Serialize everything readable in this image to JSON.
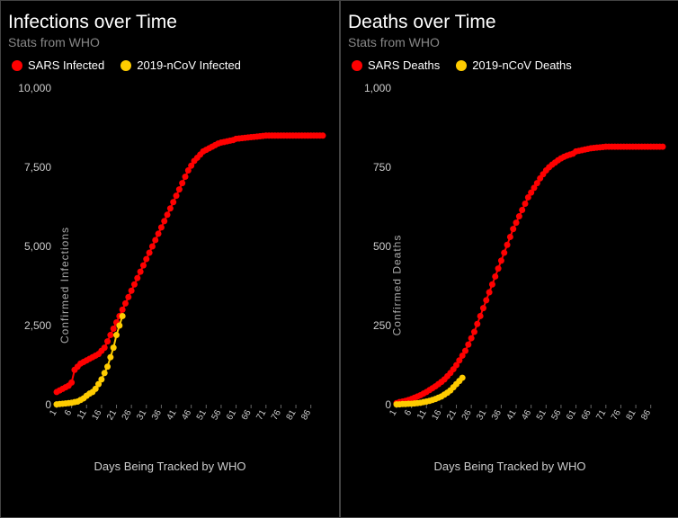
{
  "background_color": "#000000",
  "border_color": "#444444",
  "grid_color": "#333333",
  "text_color": "#ffffff",
  "muted_text": "#888888",
  "axis_text": "#cccccc",
  "panels": [
    {
      "title": "Infections over Time",
      "subtitle": "Stats from WHO",
      "ylabel": "Confirmed Infections",
      "xlabel": "Days Being Tracked by WHO",
      "ylim": [
        0,
        10000
      ],
      "ytick_step": 2500,
      "ytick_labels": [
        "0",
        "2,500",
        "5,000",
        "7,500",
        "10,000"
      ],
      "xlim": [
        1,
        90
      ],
      "xticks": [
        1,
        6,
        11,
        16,
        21,
        26,
        31,
        36,
        41,
        46,
        51,
        56,
        61,
        66,
        71,
        76,
        81,
        86
      ],
      "legend": [
        {
          "label": "SARS Infected",
          "color": "#ff0000"
        },
        {
          "label": "2019-nCoV Infected",
          "color": "#ffcc00"
        }
      ],
      "series": [
        {
          "name": "sars-infected",
          "color": "#ff0000",
          "marker_size": 3.5,
          "line_width": 2,
          "data": [
            [
              1,
              400
            ],
            [
              2,
              450
            ],
            [
              3,
              500
            ],
            [
              4,
              550
            ],
            [
              5,
              600
            ],
            [
              6,
              700
            ],
            [
              7,
              1100
            ],
            [
              8,
              1200
            ],
            [
              9,
              1300
            ],
            [
              10,
              1350
            ],
            [
              11,
              1400
            ],
            [
              12,
              1450
            ],
            [
              13,
              1500
            ],
            [
              14,
              1550
            ],
            [
              15,
              1600
            ],
            [
              16,
              1700
            ],
            [
              17,
              1800
            ],
            [
              18,
              2000
            ],
            [
              19,
              2200
            ],
            [
              20,
              2400
            ],
            [
              21,
              2600
            ],
            [
              22,
              2800
            ],
            [
              23,
              3000
            ],
            [
              24,
              3200
            ],
            [
              25,
              3400
            ],
            [
              26,
              3600
            ],
            [
              27,
              3800
            ],
            [
              28,
              4000
            ],
            [
              29,
              4200
            ],
            [
              30,
              4400
            ],
            [
              31,
              4600
            ],
            [
              32,
              4800
            ],
            [
              33,
              5000
            ],
            [
              34,
              5200
            ],
            [
              35,
              5400
            ],
            [
              36,
              5600
            ],
            [
              37,
              5800
            ],
            [
              38,
              6000
            ],
            [
              39,
              6200
            ],
            [
              40,
              6400
            ],
            [
              41,
              6600
            ],
            [
              42,
              6800
            ],
            [
              43,
              7000
            ],
            [
              44,
              7200
            ],
            [
              45,
              7400
            ],
            [
              46,
              7550
            ],
            [
              47,
              7700
            ],
            [
              48,
              7800
            ],
            [
              49,
              7900
            ],
            [
              50,
              8000
            ],
            [
              51,
              8050
            ],
            [
              52,
              8100
            ],
            [
              53,
              8150
            ],
            [
              54,
              8200
            ],
            [
              55,
              8250
            ],
            [
              56,
              8280
            ],
            [
              57,
              8300
            ],
            [
              58,
              8320
            ],
            [
              59,
              8340
            ],
            [
              60,
              8360
            ],
            [
              61,
              8400
            ],
            [
              62,
              8410
            ],
            [
              63,
              8420
            ],
            [
              64,
              8430
            ],
            [
              65,
              8440
            ],
            [
              66,
              8450
            ],
            [
              67,
              8460
            ],
            [
              68,
              8470
            ],
            [
              69,
              8480
            ],
            [
              70,
              8490
            ],
            [
              71,
              8500
            ],
            [
              72,
              8500
            ],
            [
              73,
              8500
            ],
            [
              74,
              8500
            ],
            [
              75,
              8500
            ],
            [
              76,
              8500
            ],
            [
              77,
              8500
            ],
            [
              78,
              8500
            ],
            [
              79,
              8500
            ],
            [
              80,
              8500
            ],
            [
              81,
              8500
            ],
            [
              82,
              8500
            ],
            [
              83,
              8500
            ],
            [
              84,
              8500
            ],
            [
              85,
              8500
            ],
            [
              86,
              8500
            ],
            [
              87,
              8500
            ],
            [
              88,
              8500
            ],
            [
              89,
              8500
            ],
            [
              90,
              8500
            ]
          ]
        },
        {
          "name": "ncov-infected",
          "color": "#ffcc00",
          "marker_size": 3.5,
          "line_width": 2,
          "data": [
            [
              1,
              10
            ],
            [
              2,
              20
            ],
            [
              3,
              30
            ],
            [
              4,
              40
            ],
            [
              5,
              50
            ],
            [
              6,
              60
            ],
            [
              7,
              80
            ],
            [
              8,
              100
            ],
            [
              9,
              150
            ],
            [
              10,
              200
            ],
            [
              11,
              280
            ],
            [
              12,
              350
            ],
            [
              13,
              400
            ],
            [
              14,
              500
            ],
            [
              15,
              650
            ],
            [
              16,
              800
            ],
            [
              17,
              1000
            ],
            [
              18,
              1200
            ],
            [
              19,
              1500
            ],
            [
              20,
              1800
            ],
            [
              21,
              2200
            ],
            [
              22,
              2500
            ],
            [
              23,
              2800
            ]
          ]
        }
      ]
    },
    {
      "title": "Deaths over Time",
      "subtitle": "Stats from WHO",
      "ylabel": "Confirmed  Deaths",
      "xlabel": "Days Being Tracked by WHO",
      "ylim": [
        0,
        1000
      ],
      "ytick_step": 250,
      "ytick_labels": [
        "0",
        "250",
        "500",
        "750",
        "1,000"
      ],
      "xlim": [
        1,
        90
      ],
      "xticks": [
        1,
        6,
        11,
        16,
        21,
        26,
        31,
        36,
        41,
        46,
        51,
        56,
        61,
        66,
        71,
        76,
        81,
        86
      ],
      "legend": [
        {
          "label": "SARS Deaths",
          "color": "#ff0000"
        },
        {
          "label": "2019-nCoV Deaths",
          "color": "#ffcc00"
        }
      ],
      "series": [
        {
          "name": "sars-deaths",
          "color": "#ff0000",
          "marker_size": 3.5,
          "line_width": 2,
          "data": [
            [
              1,
              5
            ],
            [
              2,
              8
            ],
            [
              3,
              10
            ],
            [
              4,
              12
            ],
            [
              5,
              15
            ],
            [
              6,
              18
            ],
            [
              7,
              22
            ],
            [
              8,
              26
            ],
            [
              9,
              30
            ],
            [
              10,
              35
            ],
            [
              11,
              40
            ],
            [
              12,
              46
            ],
            [
              13,
              52
            ],
            [
              14,
              58
            ],
            [
              15,
              65
            ],
            [
              16,
              72
            ],
            [
              17,
              80
            ],
            [
              18,
              90
            ],
            [
              19,
              100
            ],
            [
              20,
              112
            ],
            [
              21,
              125
            ],
            [
              22,
              140
            ],
            [
              23,
              155
            ],
            [
              24,
              170
            ],
            [
              25,
              190
            ],
            [
              26,
              210
            ],
            [
              27,
              230
            ],
            [
              28,
              255
            ],
            [
              29,
              280
            ],
            [
              30,
              305
            ],
            [
              31,
              330
            ],
            [
              32,
              355
            ],
            [
              33,
              380
            ],
            [
              34,
              405
            ],
            [
              35,
              430
            ],
            [
              36,
              455
            ],
            [
              37,
              480
            ],
            [
              38,
              505
            ],
            [
              39,
              530
            ],
            [
              40,
              555
            ],
            [
              41,
              575
            ],
            [
              42,
              595
            ],
            [
              43,
              615
            ],
            [
              44,
              635
            ],
            [
              45,
              655
            ],
            [
              46,
              670
            ],
            [
              47,
              685
            ],
            [
              48,
              700
            ],
            [
              49,
              715
            ],
            [
              50,
              728
            ],
            [
              51,
              740
            ],
            [
              52,
              750
            ],
            [
              53,
              758
            ],
            [
              54,
              765
            ],
            [
              55,
              772
            ],
            [
              56,
              778
            ],
            [
              57,
              783
            ],
            [
              58,
              787
            ],
            [
              59,
              790
            ],
            [
              60,
              793
            ],
            [
              61,
              800
            ],
            [
              62,
              802
            ],
            [
              63,
              804
            ],
            [
              64,
              806
            ],
            [
              65,
              808
            ],
            [
              66,
              810
            ],
            [
              67,
              811
            ],
            [
              68,
              812
            ],
            [
              69,
              813
            ],
            [
              70,
              814
            ],
            [
              71,
              815
            ],
            [
              72,
              815
            ],
            [
              73,
              815
            ],
            [
              74,
              815
            ],
            [
              75,
              815
            ],
            [
              76,
              815
            ],
            [
              77,
              815
            ],
            [
              78,
              815
            ],
            [
              79,
              815
            ],
            [
              80,
              815
            ],
            [
              81,
              815
            ],
            [
              82,
              815
            ],
            [
              83,
              815
            ],
            [
              84,
              815
            ],
            [
              85,
              815
            ],
            [
              86,
              815
            ],
            [
              87,
              815
            ],
            [
              88,
              815
            ],
            [
              89,
              815
            ],
            [
              90,
              815
            ]
          ]
        },
        {
          "name": "ncov-deaths",
          "color": "#ffcc00",
          "marker_size": 3.5,
          "line_width": 2,
          "data": [
            [
              1,
              1
            ],
            [
              2,
              1
            ],
            [
              3,
              2
            ],
            [
              4,
              2
            ],
            [
              5,
              3
            ],
            [
              6,
              3
            ],
            [
              7,
              4
            ],
            [
              8,
              5
            ],
            [
              9,
              6
            ],
            [
              10,
              8
            ],
            [
              11,
              10
            ],
            [
              12,
              12
            ],
            [
              13,
              15
            ],
            [
              14,
              18
            ],
            [
              15,
              22
            ],
            [
              16,
              26
            ],
            [
              17,
              32
            ],
            [
              18,
              38
            ],
            [
              19,
              45
            ],
            [
              20,
              55
            ],
            [
              21,
              65
            ],
            [
              22,
              75
            ],
            [
              23,
              85
            ]
          ]
        }
      ]
    }
  ]
}
